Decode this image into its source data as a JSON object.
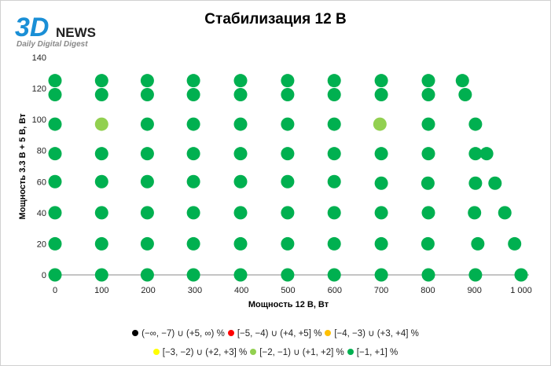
{
  "logo": {
    "main": "3D",
    "news": "NEWS",
    "tagline": "Daily Digital Digest"
  },
  "chart_data": {
    "type": "scatter",
    "title": "Стабилизация 12 В",
    "xlabel": "Мощность  12 В, Вт",
    "ylabel": "Мощность  3.3 В + 5 В, Вт",
    "xlim": [
      0,
      1000
    ],
    "ylim": [
      0,
      140
    ],
    "xticks": [
      0,
      100,
      200,
      300,
      400,
      500,
      600,
      700,
      800,
      900,
      1000
    ],
    "xtick_labels": [
      "0",
      "100",
      "200",
      "300",
      "400",
      "500",
      "600",
      "700",
      "800",
      "900",
      "1 000"
    ],
    "yticks": [
      0,
      20,
      40,
      60,
      80,
      100,
      120,
      140
    ],
    "ytick_labels": [
      "0",
      "20",
      "40",
      "60",
      "80",
      "100",
      "120",
      "140"
    ],
    "grid": false,
    "legend_position": "bottom",
    "legend": [
      {
        "label": "(−∞, −7) ∪ (+5, ∞) %",
        "color": "#000000"
      },
      {
        "label": "[−5, −4) ∪ (+4, +5] %",
        "color": "#ff0000"
      },
      {
        "label": "[−4, −3) ∪ (+3, +4] %",
        "color": "#ffc000"
      },
      {
        "label": "[−3, −2) ∪ (+2, +3] %",
        "color": "#ffff00"
      },
      {
        "label": "[−2, −1) ∪ (+1, +2] %",
        "color": "#92d050"
      },
      {
        "label": "[−1, +1] %",
        "color": "#00b050"
      }
    ],
    "points": [
      [
        0,
        0,
        5
      ],
      [
        100,
        0,
        5
      ],
      [
        198,
        0,
        5
      ],
      [
        297,
        0,
        5
      ],
      [
        398,
        0,
        5
      ],
      [
        499,
        0,
        5
      ],
      [
        599,
        0,
        5
      ],
      [
        700,
        0,
        5
      ],
      [
        801,
        0,
        5
      ],
      [
        902,
        0,
        5
      ],
      [
        1000,
        0,
        5
      ],
      [
        0,
        20,
        5
      ],
      [
        100,
        20,
        5
      ],
      [
        198,
        20,
        5
      ],
      [
        297,
        20,
        5
      ],
      [
        398,
        20,
        5
      ],
      [
        499,
        20,
        5
      ],
      [
        599,
        20,
        5
      ],
      [
        700,
        20,
        5
      ],
      [
        800,
        20,
        5
      ],
      [
        907,
        20,
        5
      ],
      [
        986,
        20,
        5
      ],
      [
        0,
        40,
        5
      ],
      [
        100,
        40,
        5
      ],
      [
        198,
        40,
        5
      ],
      [
        297,
        40,
        5
      ],
      [
        398,
        40,
        5
      ],
      [
        499,
        40,
        5
      ],
      [
        599,
        40,
        5
      ],
      [
        700,
        40,
        5
      ],
      [
        801,
        40,
        5
      ],
      [
        900,
        40,
        5
      ],
      [
        965,
        40,
        5
      ],
      [
        0,
        60,
        5
      ],
      [
        100,
        60,
        5
      ],
      [
        198,
        60,
        5
      ],
      [
        297,
        60,
        5
      ],
      [
        398,
        60,
        5
      ],
      [
        499,
        60,
        5
      ],
      [
        599,
        60,
        5
      ],
      [
        700,
        59,
        5
      ],
      [
        800,
        59,
        5
      ],
      [
        902,
        59,
        5
      ],
      [
        944,
        59,
        5
      ],
      [
        0,
        78,
        5
      ],
      [
        100,
        78,
        5
      ],
      [
        198,
        78,
        5
      ],
      [
        297,
        78,
        5
      ],
      [
        398,
        78,
        5
      ],
      [
        499,
        78,
        5
      ],
      [
        599,
        78,
        5
      ],
      [
        700,
        78,
        5
      ],
      [
        801,
        78,
        5
      ],
      [
        902,
        78,
        5
      ],
      [
        926,
        78,
        5
      ],
      [
        0,
        97,
        5
      ],
      [
        100,
        97,
        4
      ],
      [
        198,
        97,
        5
      ],
      [
        297,
        97,
        5
      ],
      [
        398,
        97,
        5
      ],
      [
        499,
        97,
        5
      ],
      [
        599,
        97,
        5
      ],
      [
        697,
        97,
        4
      ],
      [
        801,
        97,
        5
      ],
      [
        902,
        97,
        5
      ],
      [
        0,
        116,
        5
      ],
      [
        100,
        116,
        5
      ],
      [
        198,
        116,
        5
      ],
      [
        297,
        116,
        5
      ],
      [
        398,
        116,
        5
      ],
      [
        499,
        116,
        5
      ],
      [
        599,
        116,
        5
      ],
      [
        700,
        116,
        5
      ],
      [
        801,
        116,
        5
      ],
      [
        880,
        116,
        5
      ],
      [
        0,
        125,
        5
      ],
      [
        100,
        125,
        5
      ],
      [
        198,
        125,
        5
      ],
      [
        297,
        125,
        5
      ],
      [
        398,
        125,
        5
      ],
      [
        499,
        125,
        5
      ],
      [
        599,
        125,
        5
      ],
      [
        700,
        125,
        5
      ],
      [
        801,
        125,
        5
      ],
      [
        874,
        125,
        5
      ]
    ]
  }
}
